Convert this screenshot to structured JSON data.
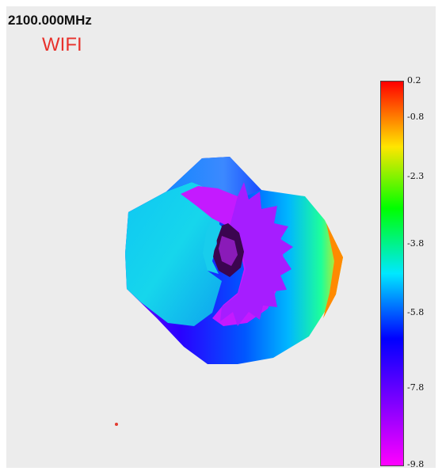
{
  "header": {
    "frequency": "2100.000MHz",
    "band": "WIFI"
  },
  "colorbar": {
    "ticks": [
      "0.2",
      "-0.8",
      "-2.3",
      "-3.8",
      "-5.8",
      "-7.8",
      "-9.8"
    ],
    "colors": [
      "#ff0000",
      "#ffe600",
      "#00ff00",
      "#00e8ff",
      "#0000ff",
      "#7a00ff",
      "#ff00ff"
    ]
  },
  "colors": {
    "background": "#ececec",
    "band_text": "#e8312b"
  }
}
